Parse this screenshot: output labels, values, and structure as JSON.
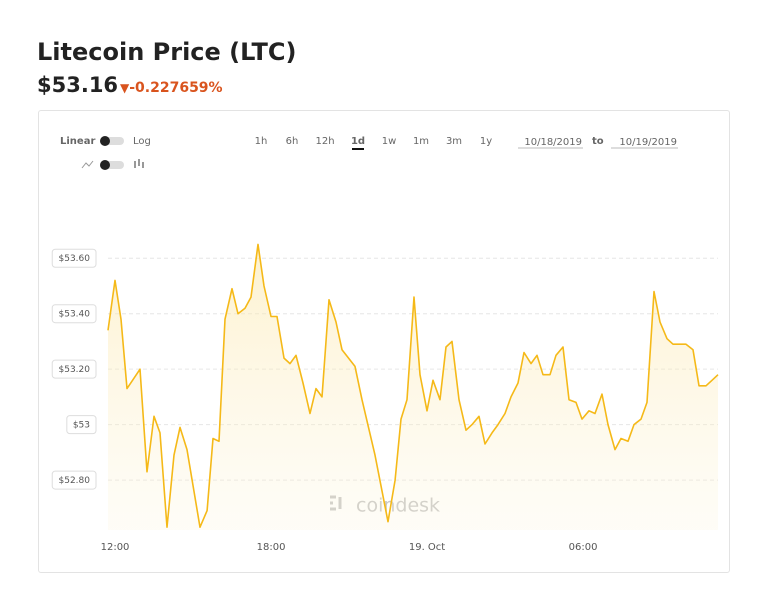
{
  "header": {
    "title": "Litecoin Price (LTC)",
    "price": "$53.16",
    "change": "-0.227659%"
  },
  "controls": {
    "scale_linear": "Linear",
    "scale_log": "Log",
    "ranges": [
      {
        "label": "1h"
      },
      {
        "label": "6h"
      },
      {
        "label": "12h"
      },
      {
        "label": "1d",
        "selected": true
      },
      {
        "label": "1w"
      },
      {
        "label": "1m"
      },
      {
        "label": "3m"
      },
      {
        "label": "1y"
      }
    ],
    "date_from": "10/18/2019",
    "to_label": "to",
    "date_to": "10/19/2019"
  },
  "chart_data": {
    "type": "line",
    "color": "#f5b918",
    "grid": true,
    "watermark": "coindesk",
    "x": [
      -0.27,
      0,
      0.23,
      0.46,
      0.96,
      1.23,
      1.5,
      1.73,
      2,
      2.27,
      2.5,
      2.77,
      3.27,
      3.54,
      3.77,
      4,
      4.23,
      4.5,
      4.73,
      5,
      5.23,
      5.5,
      5.73,
      6,
      6.23,
      6.5,
      6.73,
      6.96,
      7.23,
      7.5,
      7.73,
      7.96,
      8.23,
      8.5,
      8.73,
      9.23,
      9.5,
      10,
      10.5,
      10.77,
      11,
      11.23,
      11.5,
      11.73,
      12,
      12.23,
      12.5,
      12.73,
      12.96,
      13.23,
      13.5,
      13.73,
      14,
      14.23,
      14.5,
      14.73,
      15,
      15.23,
      15.5,
      15.73,
      16,
      16.23,
      16.46,
      16.73,
      16.96,
      17.23,
      17.46,
      17.73,
      17.96,
      18.23,
      18.46,
      18.73,
      18.96,
      19.23,
      19.46,
      19.73,
      19.96,
      20.23,
      20.46,
      20.73,
      20.96,
      21.23,
      21.46,
      21.73,
      21.96,
      22.23,
      22.46,
      22.73,
      22.96,
      23.19
    ],
    "values": [
      53.34,
      53.52,
      53.38,
      53.13,
      53.2,
      52.83,
      53.03,
      52.97,
      52.63,
      52.89,
      52.99,
      52.91,
      52.63,
      52.69,
      52.95,
      52.94,
      53.38,
      53.49,
      53.4,
      53.42,
      53.46,
      53.65,
      53.5,
      53.39,
      53.39,
      53.24,
      53.22,
      53.25,
      53.15,
      53.04,
      53.13,
      53.1,
      53.45,
      53.37,
      53.27,
      53.21,
      53.09,
      52.89,
      52.65,
      52.8,
      53.02,
      53.09,
      53.46,
      53.18,
      53.05,
      53.16,
      53.09,
      53.28,
      53.3,
      53.09,
      52.98,
      53.0,
      53.03,
      52.93,
      52.97,
      53.0,
      53.04,
      53.1,
      53.15,
      53.26,
      53.22,
      53.25,
      53.18,
      53.18,
      53.25,
      53.28,
      53.09,
      53.08,
      53.02,
      53.05,
      53.04,
      53.11,
      53.0,
      52.91,
      52.95,
      52.94,
      53.0,
      53.02,
      53.08,
      53.48,
      53.37,
      53.31,
      53.29,
      53.29,
      53.29,
      53.27,
      53.14,
      53.14,
      53.16,
      53.18
    ],
    "xlim": [
      -0.27,
      23.19
    ],
    "xticks": [
      {
        "value": 0,
        "label": "12:00"
      },
      {
        "value": 6,
        "label": "18:00"
      },
      {
        "value": 12,
        "label": "19. Oct"
      },
      {
        "value": 18,
        "label": "06:00"
      }
    ],
    "ylim": [
      52.62,
      53.81
    ],
    "yticks": [
      {
        "value": 52.8,
        "label": "$52.80"
      },
      {
        "value": 53,
        "label": "$53"
      },
      {
        "value": 53.2,
        "label": "$53.20"
      },
      {
        "value": 53.4,
        "label": "$53.40"
      },
      {
        "value": 53.6,
        "label": "$53.60"
      }
    ]
  }
}
